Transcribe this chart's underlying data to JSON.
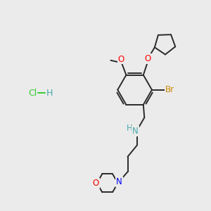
{
  "background_color": "#ebebeb",
  "bond_color": "#2a2a2a",
  "atom_colors": {
    "O": "#ff0000",
    "N_amine": "#4aa8a8",
    "N_morpholine": "#0000ee",
    "Br": "#cc8800",
    "H": "#4aa8a8",
    "Cl": "#33cc33",
    "C": "#2a2a2a"
  },
  "figsize": [
    3.0,
    3.0
  ],
  "dpi": 100,
  "lw": 1.4
}
